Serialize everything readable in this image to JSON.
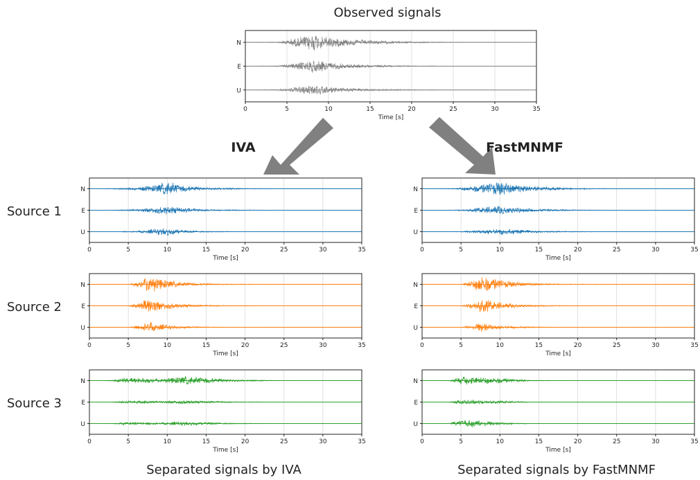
{
  "title": "Observed signals",
  "method_labels": {
    "iva": "IVA",
    "fastmnmf": "FastMNMF"
  },
  "row_labels": [
    "Source 1",
    "Source 2",
    "Source 3"
  ],
  "captions": {
    "iva": "Separated signals by IVA",
    "fastmnmf": "Separated signals by FastMNMF"
  },
  "colors": {
    "observed": "#808080",
    "source1": "#1f77b4",
    "source2": "#ff7f0e",
    "source3": "#2ca02c",
    "arrow": "#808080"
  },
  "chart_data": [
    {
      "id": "observed",
      "type": "line",
      "xlabel": "Time [s]",
      "xlim": [
        0,
        35
      ],
      "xticks": [
        0,
        5,
        10,
        15,
        20,
        25,
        30,
        35
      ],
      "channels": [
        "N",
        "E",
        "U"
      ],
      "color": "#808080",
      "envelope": {
        "x": [
          0,
          4,
          6.5,
          8,
          10,
          12,
          15,
          20,
          25,
          35
        ],
        "amp": [
          [
            0,
            0.05,
            0.5,
            0.9,
            0.55,
            0.35,
            0.2,
            0.08,
            0.02,
            0
          ],
          [
            0,
            0.05,
            0.35,
            0.65,
            0.4,
            0.22,
            0.12,
            0.05,
            0.01,
            0
          ],
          [
            0,
            0.05,
            0.3,
            0.55,
            0.3,
            0.2,
            0.1,
            0.04,
            0.01,
            0
          ]
        ]
      }
    },
    {
      "id": "iva-source1",
      "type": "line",
      "xlabel": "Time [s]",
      "xlim": [
        0,
        35
      ],
      "xticks": [
        0,
        5,
        10,
        15,
        20,
        25,
        30,
        35
      ],
      "channels": [
        "N",
        "E",
        "U"
      ],
      "color": "#1f77b4",
      "envelope": {
        "x": [
          0,
          3,
          6,
          8.5,
          10,
          12,
          15,
          20,
          25,
          35
        ],
        "amp": [
          [
            0,
            0.05,
            0.15,
            0.4,
            0.75,
            0.35,
            0.15,
            0.06,
            0.01,
            0
          ],
          [
            0,
            0.03,
            0.1,
            0.35,
            0.45,
            0.25,
            0.1,
            0.04,
            0.01,
            0
          ],
          [
            0,
            0.02,
            0.08,
            0.3,
            0.4,
            0.15,
            0.06,
            0.02,
            0,
            0
          ]
        ]
      }
    },
    {
      "id": "fastmnmf-source1",
      "type": "line",
      "xlabel": "Time [s]",
      "xlim": [
        0,
        35
      ],
      "xticks": [
        0,
        5,
        10,
        15,
        20,
        25,
        30,
        35
      ],
      "channels": [
        "N",
        "E",
        "U"
      ],
      "color": "#1f77b4",
      "envelope": {
        "x": [
          0,
          4,
          6,
          8,
          10,
          12,
          15,
          20,
          25,
          35
        ],
        "amp": [
          [
            0,
            0.05,
            0.25,
            0.5,
            0.75,
            0.45,
            0.25,
            0.08,
            0.02,
            0
          ],
          [
            0,
            0.03,
            0.15,
            0.35,
            0.45,
            0.3,
            0.15,
            0.05,
            0.01,
            0
          ],
          [
            0,
            0.02,
            0.1,
            0.25,
            0.35,
            0.25,
            0.1,
            0.04,
            0.01,
            0
          ]
        ]
      }
    },
    {
      "id": "iva-source2",
      "type": "line",
      "xlabel": "Time [s]",
      "xlim": [
        0,
        35
      ],
      "xticks": [
        0,
        5,
        10,
        15,
        20,
        25,
        30,
        35
      ],
      "channels": [
        "N",
        "E",
        "U"
      ],
      "color": "#ff7f0e",
      "envelope": {
        "x": [
          0,
          5,
          6.8,
          7.5,
          9,
          11,
          14,
          18,
          25,
          35
        ],
        "amp": [
          [
            0,
            0.02,
            0.4,
            1.0,
            0.6,
            0.3,
            0.12,
            0.05,
            0.02,
            0
          ],
          [
            0,
            0.02,
            0.4,
            0.85,
            0.5,
            0.25,
            0.1,
            0.04,
            0.01,
            0
          ],
          [
            0,
            0.02,
            0.3,
            0.6,
            0.35,
            0.15,
            0.06,
            0.02,
            0.01,
            0
          ]
        ]
      }
    },
    {
      "id": "fastmnmf-source2",
      "type": "line",
      "xlabel": "Time [s]",
      "xlim": [
        0,
        35
      ],
      "xticks": [
        0,
        5,
        10,
        15,
        20,
        25,
        30,
        35
      ],
      "channels": [
        "N",
        "E",
        "U"
      ],
      "color": "#ff7f0e",
      "envelope": {
        "x": [
          0,
          5,
          6.8,
          7.5,
          9,
          11,
          14,
          18,
          25,
          35
        ],
        "amp": [
          [
            0,
            0.02,
            0.5,
            1.0,
            0.65,
            0.35,
            0.15,
            0.05,
            0.02,
            0
          ],
          [
            0,
            0.02,
            0.4,
            0.85,
            0.5,
            0.25,
            0.1,
            0.04,
            0.01,
            0
          ],
          [
            0,
            0.02,
            0.3,
            0.55,
            0.3,
            0.15,
            0.06,
            0.02,
            0.01,
            0
          ]
        ]
      }
    },
    {
      "id": "iva-source3",
      "type": "line",
      "xlabel": "Time [s]",
      "xlim": [
        0,
        35
      ],
      "xticks": [
        0,
        5,
        10,
        15,
        20,
        25,
        30,
        35
      ],
      "channels": [
        "N",
        "E",
        "U"
      ],
      "color": "#2ca02c",
      "envelope": {
        "x": [
          0,
          3,
          4,
          7,
          9,
          11,
          12.5,
          15,
          19,
          25,
          35
        ],
        "amp": [
          [
            0,
            0.05,
            0.3,
            0.3,
            0.2,
            0.35,
            0.45,
            0.3,
            0.12,
            0.02,
            0
          ],
          [
            0,
            0.03,
            0.15,
            0.15,
            0.1,
            0.2,
            0.2,
            0.12,
            0.05,
            0.01,
            0
          ],
          [
            0,
            0.03,
            0.15,
            0.15,
            0.1,
            0.2,
            0.2,
            0.12,
            0.05,
            0.01,
            0
          ]
        ]
      }
    },
    {
      "id": "fastmnmf-source3",
      "type": "line",
      "xlabel": "Time [s]",
      "xlim": [
        0,
        35
      ],
      "xticks": [
        0,
        5,
        10,
        15,
        20,
        25,
        30,
        35
      ],
      "channels": [
        "N",
        "E",
        "U"
      ],
      "color": "#2ca02c",
      "envelope": {
        "x": [
          0,
          3.5,
          4.5,
          6,
          8,
          10,
          12,
          14,
          20,
          35
        ],
        "amp": [
          [
            0,
            0.03,
            0.35,
            0.45,
            0.35,
            0.3,
            0.15,
            0.05,
            0.01,
            0
          ],
          [
            0,
            0.02,
            0.2,
            0.25,
            0.2,
            0.15,
            0.08,
            0.03,
            0,
            0
          ],
          [
            0,
            0.02,
            0.3,
            0.4,
            0.3,
            0.15,
            0.08,
            0.03,
            0,
            0
          ]
        ]
      }
    }
  ]
}
